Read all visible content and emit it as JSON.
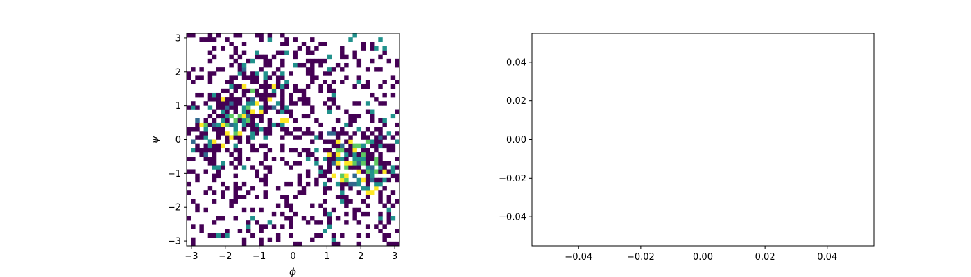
{
  "figure": {
    "background": "#ffffff"
  },
  "chart_data": [
    {
      "type": "heatmap",
      "title": "",
      "xlabel": "ϕ",
      "ylabel": "ψ",
      "xlim": [
        -3.14159,
        3.14159
      ],
      "ylim": [
        -3.14159,
        3.14159
      ],
      "bins": 50,
      "xticks": [
        -3,
        -2,
        -1,
        0,
        1,
        2,
        3
      ],
      "xtick_labels": [
        "−3",
        "−2",
        "−1",
        "0",
        "1",
        "2",
        "3"
      ],
      "yticks": [
        -3,
        -2,
        -1,
        0,
        1,
        2,
        3
      ],
      "ytick_labels": [
        "−3",
        "−2",
        "−1",
        "0",
        "1",
        "2",
        "3"
      ],
      "colormap": "viridis",
      "colors": {
        "low": "#440154",
        "mid": "#21918c",
        "high": "#fde725",
        "bluegreen": "#31688e",
        "lightgreen": "#5ec962"
      },
      "empty_bins": "white",
      "grid": false,
      "density_description": "2D histogram of backbone dihedral angles; mostly count-1 bins (purple), denser region around phi≈1..3, psi≈-2..0.5"
    },
    {
      "type": "line",
      "title": "",
      "xlabel": "",
      "ylabel": "",
      "series": [],
      "xlim": [
        -0.055,
        0.055
      ],
      "ylim": [
        -0.055,
        0.055
      ],
      "xticks": [
        -0.04,
        -0.02,
        0.0,
        0.02,
        0.04
      ],
      "xtick_labels": [
        "−0.04",
        "−0.02",
        "0.00",
        "0.02",
        "0.04"
      ],
      "yticks": [
        -0.04,
        -0.02,
        0.0,
        0.02,
        0.04
      ],
      "ytick_labels": [
        "−0.04",
        "−0.02",
        "0.00",
        "0.02",
        "0.04"
      ],
      "grid": false
    }
  ]
}
